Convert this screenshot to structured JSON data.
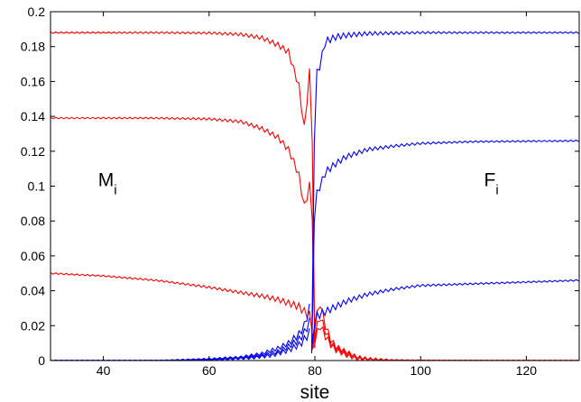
{
  "chart_data": {
    "type": "line",
    "xlabel": "site",
    "ylabel": "",
    "xlim": [
      30,
      130
    ],
    "ylim": [
      0,
      0.2
    ],
    "xticks": [
      40,
      60,
      80,
      100,
      120
    ],
    "yticks": [
      0,
      0.02,
      0.04,
      0.06,
      0.08,
      0.1,
      0.12,
      0.14,
      0.16,
      0.18,
      0.2
    ],
    "grid": false,
    "annotations": [
      {
        "label": "M",
        "subscript": "i",
        "x": 39,
        "y": 0.1
      },
      {
        "label": "F",
        "subscript": "i",
        "x": 112,
        "y": 0.1
      }
    ],
    "series": [
      {
        "color": "#ff0000",
        "side": "left",
        "points": [
          [
            30,
            0.188
          ],
          [
            50,
            0.188
          ],
          [
            60,
            0.1878
          ],
          [
            66,
            0.187
          ],
          [
            70,
            0.185
          ],
          [
            73,
            0.181
          ],
          [
            75,
            0.177
          ],
          [
            76,
            0.167
          ],
          [
            77,
            0.157
          ],
          [
            78,
            0.133
          ],
          [
            79,
            0.165
          ],
          [
            79.6,
            0.12
          ],
          [
            80,
            0.005
          ]
        ]
      },
      {
        "color": "#ff0000",
        "side": "left",
        "points": [
          [
            30,
            0.139
          ],
          [
            50,
            0.139
          ],
          [
            60,
            0.1385
          ],
          [
            66,
            0.137
          ],
          [
            70,
            0.133
          ],
          [
            73,
            0.128
          ],
          [
            75,
            0.121
          ],
          [
            76,
            0.114
          ],
          [
            77,
            0.106
          ],
          [
            78,
            0.088
          ],
          [
            79,
            0.1
          ],
          [
            79.6,
            0.08
          ],
          [
            80,
            0.005
          ]
        ]
      },
      {
        "color": "#ff0000",
        "side": "left",
        "points": [
          [
            30,
            0.05
          ],
          [
            40,
            0.0485
          ],
          [
            50,
            0.046
          ],
          [
            60,
            0.042
          ],
          [
            66,
            0.039
          ],
          [
            70,
            0.037
          ],
          [
            73,
            0.035
          ],
          [
            75,
            0.033
          ],
          [
            77,
            0.031
          ],
          [
            78,
            0.028
          ],
          [
            79,
            0.026
          ],
          [
            80,
            0.01
          ]
        ]
      },
      {
        "color": "#ff0000",
        "side": "right",
        "points": [
          [
            79.5,
            0.005
          ],
          [
            80,
            0.02
          ],
          [
            81,
            0.033
          ],
          [
            82,
            0.02
          ],
          [
            83,
            0.012
          ],
          [
            84,
            0.008
          ],
          [
            86,
            0.005
          ],
          [
            88,
            0.002
          ],
          [
            90,
            0.001
          ],
          [
            95,
            0.0
          ],
          [
            130,
            0.0
          ]
        ]
      },
      {
        "color": "#ff0000",
        "side": "right",
        "points": [
          [
            79.5,
            0.005
          ],
          [
            80,
            0.015
          ],
          [
            81,
            0.025
          ],
          [
            82,
            0.017
          ],
          [
            83,
            0.01
          ],
          [
            84,
            0.007
          ],
          [
            86,
            0.004
          ],
          [
            88,
            0.002
          ],
          [
            90,
            0.001
          ],
          [
            95,
            0.0
          ],
          [
            130,
            0.0
          ]
        ]
      },
      {
        "color": "#ff0000",
        "side": "right",
        "points": [
          [
            79.5,
            0.004
          ],
          [
            80,
            0.012
          ],
          [
            81,
            0.02
          ],
          [
            82,
            0.014
          ],
          [
            83,
            0.009
          ],
          [
            84,
            0.006
          ],
          [
            86,
            0.003
          ],
          [
            88,
            0.001
          ],
          [
            92,
            0.0
          ],
          [
            130,
            0.0
          ]
        ]
      },
      {
        "color": "#0000ff",
        "side": "right",
        "points": [
          [
            79.4,
            0.002
          ],
          [
            79.8,
            0.12
          ],
          [
            80.5,
            0.172
          ],
          [
            81,
            0.168
          ],
          [
            81.5,
            0.177
          ],
          [
            82,
            0.183
          ],
          [
            84,
            0.1855
          ],
          [
            86,
            0.1865
          ],
          [
            90,
            0.1875
          ],
          [
            100,
            0.188
          ],
          [
            130,
            0.188
          ]
        ]
      },
      {
        "color": "#0000ff",
        "side": "right",
        "points": [
          [
            79.4,
            0.002
          ],
          [
            79.8,
            0.08
          ],
          [
            80.5,
            0.098
          ],
          [
            81,
            0.1
          ],
          [
            82,
            0.108
          ],
          [
            84,
            0.113
          ],
          [
            86,
            0.117
          ],
          [
            90,
            0.121
          ],
          [
            95,
            0.123
          ],
          [
            100,
            0.1245
          ],
          [
            110,
            0.1255
          ],
          [
            130,
            0.126
          ]
        ]
      },
      {
        "color": "#0000ff",
        "side": "right",
        "points": [
          [
            79.4,
            0.005
          ],
          [
            80,
            0.025
          ],
          [
            82,
            0.028
          ],
          [
            84,
            0.031
          ],
          [
            86,
            0.034
          ],
          [
            90,
            0.038
          ],
          [
            95,
            0.041
          ],
          [
            100,
            0.043
          ],
          [
            110,
            0.044
          ],
          [
            120,
            0.045
          ],
          [
            130,
            0.046
          ]
        ]
      },
      {
        "color": "#0000ff",
        "side": "left",
        "points": [
          [
            30,
            0.0
          ],
          [
            50,
            0.0
          ],
          [
            60,
            0.001
          ],
          [
            66,
            0.002
          ],
          [
            70,
            0.004
          ],
          [
            73,
            0.007
          ],
          [
            75,
            0.01
          ],
          [
            77,
            0.015
          ],
          [
            78,
            0.02
          ],
          [
            79,
            0.03
          ],
          [
            79.4,
            0.002
          ]
        ]
      },
      {
        "color": "#0000ff",
        "side": "left",
        "points": [
          [
            30,
            0.0
          ],
          [
            50,
            0.0
          ],
          [
            60,
            0.0005
          ],
          [
            66,
            0.0015
          ],
          [
            70,
            0.003
          ],
          [
            73,
            0.005
          ],
          [
            75,
            0.008
          ],
          [
            77,
            0.012
          ],
          [
            78,
            0.016
          ],
          [
            79,
            0.022
          ],
          [
            79.4,
            0.002
          ]
        ]
      },
      {
        "color": "#0000ff",
        "side": "left",
        "points": [
          [
            30,
            0.0
          ],
          [
            55,
            0.0
          ],
          [
            62,
            0.0005
          ],
          [
            68,
            0.0015
          ],
          [
            72,
            0.003
          ],
          [
            75,
            0.006
          ],
          [
            77,
            0.009
          ],
          [
            78,
            0.012
          ],
          [
            79,
            0.016
          ],
          [
            79.4,
            0.002
          ]
        ]
      }
    ]
  }
}
